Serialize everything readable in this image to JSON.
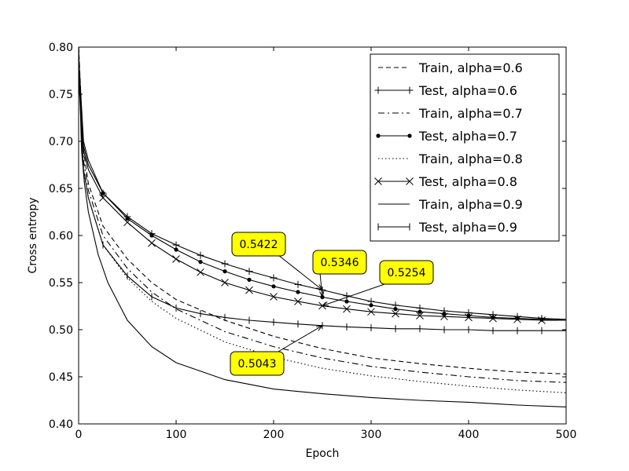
{
  "chart_data": {
    "type": "line",
    "title": "",
    "xlabel": "Epoch",
    "ylabel": "Cross entropy",
    "xlim": [
      0,
      500
    ],
    "ylim": [
      0.4,
      0.8
    ],
    "xticks": [
      "0",
      "100",
      "200",
      "300",
      "400",
      "500"
    ],
    "yticks": [
      "0.40",
      "0.45",
      "0.50",
      "0.55",
      "0.60",
      "0.65",
      "0.70",
      "0.75",
      "0.80"
    ],
    "grid": false,
    "legend_position": "top-right",
    "series": [
      {
        "name": "Train, alpha=0.6",
        "style": "dashed",
        "x": [
          0,
          5,
          10,
          25,
          50,
          75,
          100,
          150,
          200,
          250,
          300,
          350,
          400,
          450,
          500
        ],
        "y": [
          0.8,
          0.69,
          0.655,
          0.61,
          0.575,
          0.55,
          0.532,
          0.51,
          0.493,
          0.48,
          0.47,
          0.464,
          0.459,
          0.455,
          0.453
        ]
      },
      {
        "name": "Test, alpha=0.6",
        "style": "solid",
        "marker": "plus",
        "x": [
          0,
          5,
          10,
          25,
          50,
          75,
          100,
          125,
          150,
          175,
          200,
          225,
          250,
          275,
          300,
          325,
          350,
          375,
          400,
          425,
          450,
          475,
          500
        ],
        "y": [
          0.79,
          0.7,
          0.68,
          0.645,
          0.62,
          0.602,
          0.59,
          0.579,
          0.57,
          0.562,
          0.555,
          0.548,
          0.5422,
          0.536,
          0.53,
          0.526,
          0.523,
          0.52,
          0.518,
          0.516,
          0.514,
          0.512,
          0.511
        ]
      },
      {
        "name": "Train, alpha=0.7",
        "style": "dashdot",
        "x": [
          0,
          5,
          10,
          25,
          50,
          75,
          100,
          150,
          200,
          250,
          300,
          350,
          400,
          450,
          500
        ],
        "y": [
          0.8,
          0.68,
          0.648,
          0.6,
          0.565,
          0.54,
          0.522,
          0.498,
          0.482,
          0.47,
          0.461,
          0.455,
          0.45,
          0.446,
          0.444
        ]
      },
      {
        "name": "Test, alpha=0.7",
        "style": "solid",
        "marker": "dot",
        "x": [
          0,
          5,
          10,
          25,
          50,
          75,
          100,
          125,
          150,
          175,
          200,
          225,
          250,
          275,
          300,
          325,
          350,
          375,
          400,
          425,
          450,
          475,
          500
        ],
        "y": [
          0.78,
          0.695,
          0.675,
          0.645,
          0.618,
          0.6,
          0.585,
          0.572,
          0.562,
          0.553,
          0.546,
          0.54,
          0.5346,
          0.53,
          0.526,
          0.522,
          0.519,
          0.517,
          0.515,
          0.513,
          0.512,
          0.511,
          0.51
        ]
      },
      {
        "name": "Train, alpha=0.8",
        "style": "dotted",
        "x": [
          0,
          5,
          10,
          25,
          50,
          75,
          100,
          150,
          200,
          250,
          300,
          350,
          400,
          450,
          500
        ],
        "y": [
          0.8,
          0.67,
          0.64,
          0.59,
          0.555,
          0.53,
          0.512,
          0.487,
          0.471,
          0.459,
          0.451,
          0.445,
          0.44,
          0.436,
          0.433
        ]
      },
      {
        "name": "Test, alpha=0.8",
        "style": "solid",
        "marker": "x",
        "x": [
          0,
          5,
          10,
          25,
          50,
          75,
          100,
          125,
          150,
          175,
          200,
          225,
          250,
          275,
          300,
          325,
          350,
          375,
          400,
          425,
          450,
          475,
          500
        ],
        "y": [
          0.78,
          0.69,
          0.67,
          0.64,
          0.614,
          0.592,
          0.575,
          0.561,
          0.55,
          0.542,
          0.535,
          0.53,
          0.5254,
          0.522,
          0.519,
          0.517,
          0.515,
          0.514,
          0.513,
          0.512,
          0.511,
          0.51,
          0.51
        ]
      },
      {
        "name": "Train, alpha=0.9",
        "style": "solid",
        "x": [
          0,
          3,
          6,
          10,
          20,
          30,
          50,
          75,
          100,
          150,
          200,
          250,
          300,
          350,
          400,
          450,
          500
        ],
        "y": [
          0.8,
          0.69,
          0.655,
          0.625,
          0.58,
          0.55,
          0.51,
          0.482,
          0.465,
          0.447,
          0.437,
          0.432,
          0.428,
          0.425,
          0.423,
          0.42,
          0.418
        ]
      },
      {
        "name": "Test, alpha=0.9",
        "style": "solid",
        "marker": "vline",
        "x": [
          0,
          5,
          10,
          25,
          50,
          75,
          100,
          125,
          150,
          175,
          200,
          225,
          250,
          275,
          300,
          325,
          350,
          375,
          400,
          425,
          450,
          475,
          500
        ],
        "y": [
          0.77,
          0.67,
          0.64,
          0.59,
          0.557,
          0.535,
          0.523,
          0.517,
          0.513,
          0.51,
          0.508,
          0.506,
          0.5043,
          0.503,
          0.502,
          0.501,
          0.501,
          0.5,
          0.5,
          0.499,
          0.499,
          0.499,
          0.499
        ]
      }
    ],
    "annotations": [
      {
        "text": "0.5422",
        "x": 250,
        "y": 0.5422
      },
      {
        "text": "0.5346",
        "x": 250,
        "y": 0.5346
      },
      {
        "text": "0.5254",
        "x": 250,
        "y": 0.5254
      },
      {
        "text": "0.5043",
        "x": 250,
        "y": 0.5043
      }
    ]
  }
}
